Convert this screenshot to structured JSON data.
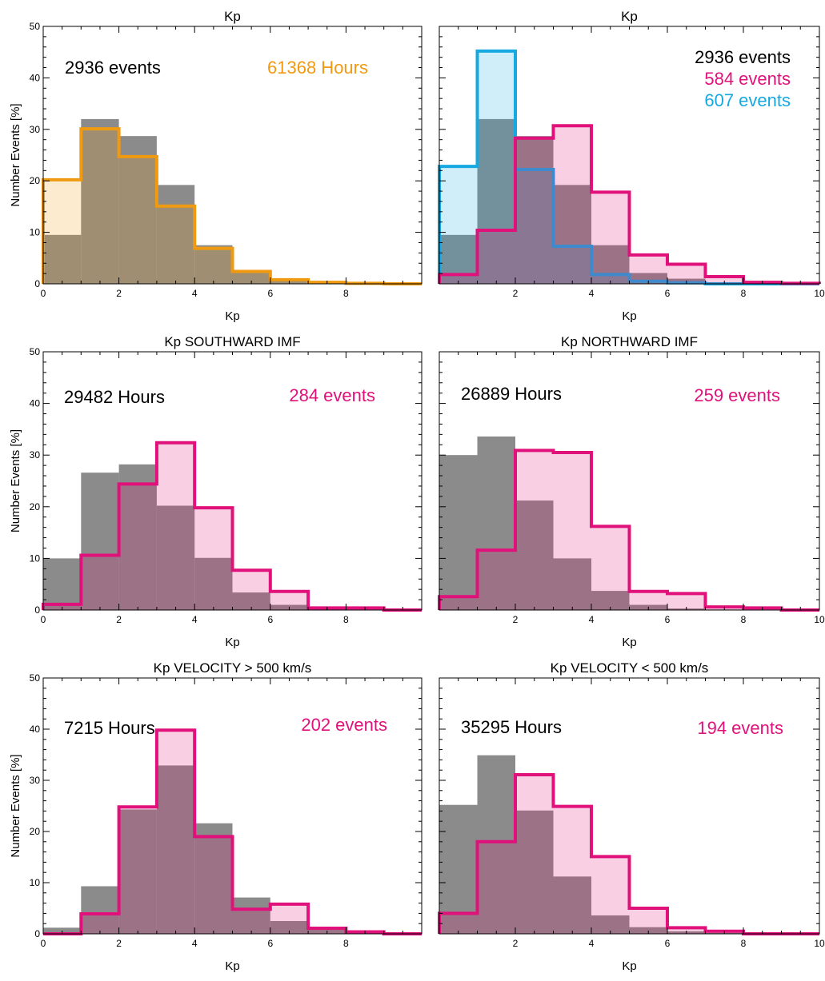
{
  "figure": {
    "ylabel": "Number Events [%]",
    "xlabel": "Kp"
  },
  "colors": {
    "gray_fill": "#777777",
    "orange": "#F09A11",
    "magenta": "#E0117A",
    "blue": "#16A9E1",
    "text": "#000000"
  },
  "chart_data": [
    {
      "type": "bar",
      "title": "Kp",
      "xlabel": "Kp",
      "ylabel": "Number Events [%]",
      "xlim": [
        0,
        10
      ],
      "ylim": [
        0,
        50
      ],
      "xticks": [
        "0",
        "2",
        "4",
        "6",
        "8"
      ],
      "yticks": [
        "0",
        "10",
        "20",
        "30",
        "40",
        "50"
      ],
      "bin_edges": [
        0,
        1,
        2,
        3,
        4,
        5,
        6,
        7,
        8,
        9,
        10
      ],
      "annotations": [
        {
          "text": "2936 events",
          "color": "#000000"
        },
        {
          "text": "61368 Hours",
          "color": "#F09A11"
        }
      ],
      "series": [
        {
          "style": "filled",
          "color": "#777777",
          "values": [
            9.5,
            32,
            28.7,
            19.2,
            7.5,
            2.1,
            1.0,
            0.3,
            0.1,
            0.0
          ]
        },
        {
          "style": "outline",
          "color": "#F09A11",
          "values": [
            20.2,
            30.1,
            24.7,
            15.1,
            6.9,
            2.4,
            0.8,
            0.3,
            0.1,
            0.0
          ]
        }
      ]
    },
    {
      "type": "bar",
      "title": "Kp",
      "xlabel": "Kp",
      "ylabel": "",
      "xlim": [
        0,
        10
      ],
      "ylim": [
        0,
        50
      ],
      "xticks": [
        "2",
        "4",
        "6",
        "8",
        "10"
      ],
      "yticks": [],
      "bin_edges": [
        0,
        1,
        2,
        3,
        4,
        5,
        6,
        7,
        8,
        9,
        10
      ],
      "annotations": [
        {
          "text": "2936 events",
          "color": "#000000"
        },
        {
          "text": "584 events",
          "color": "#E0117A"
        },
        {
          "text": "607 events",
          "color": "#16A9E1"
        }
      ],
      "series": [
        {
          "style": "filled",
          "color": "#777777",
          "values": [
            9.5,
            32,
            28.7,
            19.2,
            7.5,
            2.1,
            1.0,
            0.3,
            0.1,
            0.0
          ]
        },
        {
          "style": "outline",
          "color": "#16A9E1",
          "values": [
            22.8,
            45.2,
            22.2,
            7.3,
            1.8,
            0.5,
            0.2,
            0.0,
            0.0,
            0.0
          ]
        },
        {
          "style": "outline",
          "color": "#E0117A",
          "values": [
            1.8,
            10.4,
            28.3,
            30.7,
            17.8,
            5.6,
            3.8,
            1.4,
            0.3,
            0.1
          ]
        }
      ]
    },
    {
      "type": "bar",
      "title": "Kp SOUTHWARD IMF",
      "xlabel": "Kp",
      "ylabel": "Number Events [%]",
      "xlim": [
        0,
        10
      ],
      "ylim": [
        0,
        50
      ],
      "xticks": [
        "0",
        "2",
        "4",
        "6",
        "8"
      ],
      "yticks": [
        "0",
        "10",
        "20",
        "30",
        "40",
        "50"
      ],
      "bin_edges": [
        0,
        1,
        2,
        3,
        4,
        5,
        6,
        7,
        8,
        9,
        10
      ],
      "annotations": [
        {
          "text": "29482 Hours",
          "color": "#000000"
        },
        {
          "text": "284 events",
          "color": "#E0117A"
        }
      ],
      "series": [
        {
          "style": "filled",
          "color": "#777777",
          "values": [
            10.0,
            26.6,
            28.2,
            20.2,
            10.1,
            3.4,
            1.0,
            0.2,
            0.1,
            0.0
          ]
        },
        {
          "style": "outline",
          "color": "#E0117A",
          "values": [
            1.1,
            10.6,
            24.4,
            32.4,
            19.8,
            7.7,
            3.6,
            0.4,
            0.4,
            0.0
          ]
        }
      ]
    },
    {
      "type": "bar",
      "title": "Kp NORTHWARD IMF",
      "xlabel": "Kp",
      "ylabel": "",
      "xlim": [
        0,
        10
      ],
      "ylim": [
        0,
        50
      ],
      "xticks": [
        "2",
        "4",
        "6",
        "8",
        "10"
      ],
      "yticks": [],
      "bin_edges": [
        0,
        1,
        2,
        3,
        4,
        5,
        6,
        7,
        8,
        9,
        10
      ],
      "annotations": [
        {
          "text": "26889 Hours",
          "color": "#000000"
        },
        {
          "text": "259 events",
          "color": "#E0117A"
        }
      ],
      "series": [
        {
          "style": "filled",
          "color": "#777777",
          "values": [
            30.0,
            33.6,
            21.2,
            10.0,
            3.7,
            1.0,
            0.3,
            0.1,
            0.0,
            0.0
          ]
        },
        {
          "style": "outline",
          "color": "#E0117A",
          "values": [
            2.6,
            11.6,
            30.9,
            30.5,
            16.2,
            3.6,
            3.2,
            0.6,
            0.4,
            0.0
          ]
        }
      ]
    },
    {
      "type": "bar",
      "title": "Kp VELOCITY > 500 km/s",
      "xlabel": "Kp",
      "ylabel": "Number Events [%]",
      "xlim": [
        0,
        10
      ],
      "ylim": [
        0,
        50
      ],
      "xticks": [
        "0",
        "2",
        "4",
        "6",
        "8"
      ],
      "yticks": [
        "0",
        "10",
        "20",
        "30",
        "40",
        "50"
      ],
      "bin_edges": [
        0,
        1,
        2,
        3,
        4,
        5,
        6,
        7,
        8,
        9,
        10
      ],
      "annotations": [
        {
          "text": "7215 Hours",
          "color": "#000000"
        },
        {
          "text": "202 events",
          "color": "#E0117A"
        }
      ],
      "series": [
        {
          "style": "filled",
          "color": "#777777",
          "values": [
            1.2,
            9.3,
            24.3,
            32.9,
            21.6,
            7.1,
            2.5,
            0.9,
            0.2,
            0.1
          ]
        },
        {
          "style": "outline",
          "color": "#E0117A",
          "values": [
            0.0,
            3.9,
            24.8,
            39.8,
            19.0,
            4.8,
            5.8,
            1.1,
            0.4,
            0.0
          ]
        }
      ]
    },
    {
      "type": "bar",
      "title": "Kp VELOCITY < 500 km/s",
      "xlabel": "Kp",
      "ylabel": "",
      "xlim": [
        0,
        10
      ],
      "ylim": [
        0,
        50
      ],
      "xticks": [
        "2",
        "4",
        "6",
        "8",
        "10"
      ],
      "yticks": [],
      "bin_edges": [
        0,
        1,
        2,
        3,
        4,
        5,
        6,
        7,
        8,
        9,
        10
      ],
      "annotations": [
        {
          "text": "35295 Hours",
          "color": "#000000"
        },
        {
          "text": "194 events",
          "color": "#E0117A"
        }
      ],
      "series": [
        {
          "style": "filled",
          "color": "#777777",
          "values": [
            25.2,
            34.9,
            24.1,
            11.2,
            3.6,
            1.3,
            0.5,
            0.2,
            0.1,
            0.0
          ]
        },
        {
          "style": "outline",
          "color": "#E0117A",
          "values": [
            4.0,
            18.0,
            31.1,
            24.9,
            15.1,
            5.0,
            1.2,
            0.5,
            0.0,
            0.0
          ]
        }
      ]
    }
  ]
}
